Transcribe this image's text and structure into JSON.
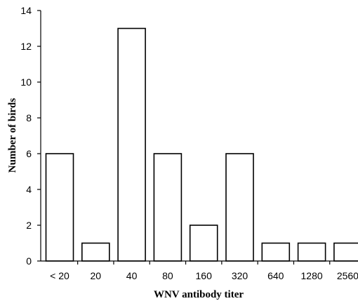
{
  "chart_data": {
    "type": "bar",
    "categories": [
      "< 20",
      "20",
      "40",
      "80",
      "160",
      "320",
      "640",
      "1280",
      "2560"
    ],
    "values": [
      6,
      1,
      13,
      6,
      2,
      6,
      1,
      1,
      1
    ],
    "xlabel": "WNV antibody titer",
    "ylabel": "Number of birds",
    "ylim": [
      0,
      14
    ],
    "yticks": [
      0,
      2,
      4,
      6,
      8,
      10,
      12,
      14
    ],
    "grid": false,
    "legend": "none",
    "colors": {
      "bar_fill": "#ffffff",
      "bar_stroke": "#000000"
    }
  }
}
